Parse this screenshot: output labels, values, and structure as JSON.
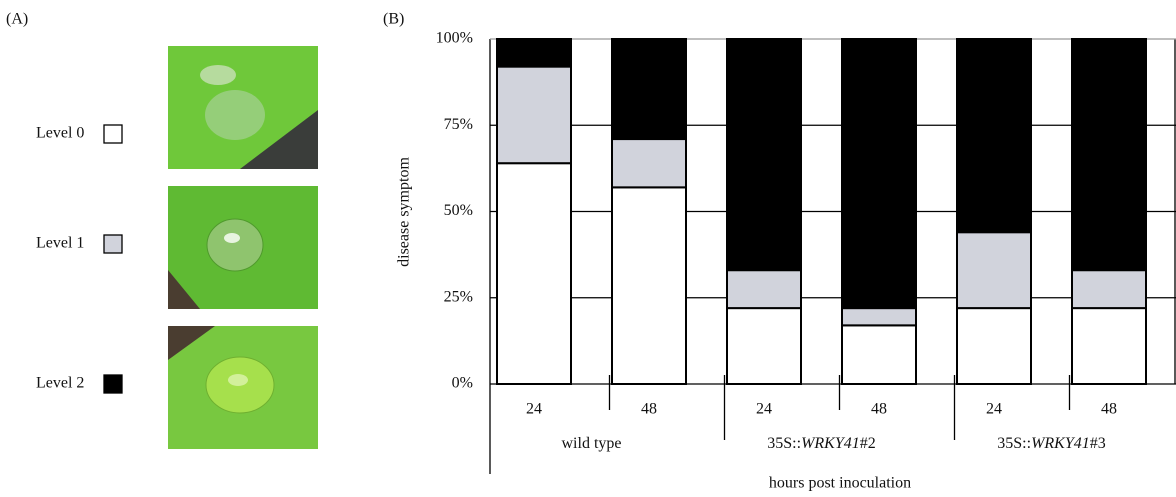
{
  "panel_a": {
    "label": "(A)"
  },
  "chart_data": {
    "type": "stacked-bar",
    "panel_label": "(B)",
    "ylabel": "disease symptom",
    "xlabel": "hours post inoculation",
    "categories": [
      "24",
      "48",
      "24",
      "48",
      "24",
      "48"
    ],
    "group_labels": [
      [
        "wild type"
      ],
      [
        "35S::",
        "WRKY41",
        "#2"
      ],
      [
        "35S::",
        "WRKY41",
        "#3"
      ]
    ],
    "series": [
      {
        "name": "Level 0",
        "color": "#ffffff",
        "values": [
          64,
          57,
          22,
          17,
          22,
          22
        ]
      },
      {
        "name": "Level 1",
        "color": "#d1d3dc",
        "values": [
          28,
          14,
          11,
          5,
          22,
          11
        ]
      },
      {
        "name": "Level 2",
        "color": "#000000",
        "values": [
          8,
          29,
          67,
          78,
          56,
          67
        ]
      }
    ],
    "ylim": [
      0,
      100
    ],
    "yticks": [
      {
        "value": 0,
        "label": "0%"
      },
      {
        "value": 25,
        "label": "25%"
      },
      {
        "value": 50,
        "label": "50%"
      },
      {
        "value": 75,
        "label": "75%"
      },
      {
        "value": 100,
        "label": "100%"
      }
    ],
    "grid": true
  }
}
